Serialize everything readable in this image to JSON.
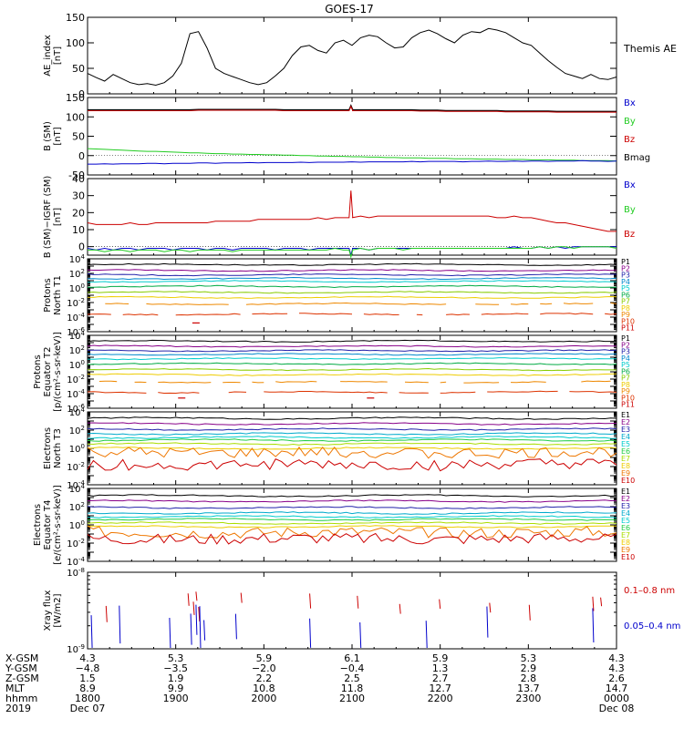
{
  "title": "GOES-17",
  "colors": {
    "axis": "#000000",
    "black": "#000000",
    "blue": "#0000cc",
    "green": "#22cc22",
    "red": "#cc0000"
  },
  "chart_data": [
    {
      "type": "line",
      "ylabel": [
        "AE_index",
        "[nT]"
      ],
      "ylim": [
        0,
        150
      ],
      "yticks": [
        "0",
        "50",
        "100",
        "150"
      ],
      "legend": [
        {
          "label": "Themis AE",
          "color": "#000000"
        }
      ],
      "series": [
        {
          "name": "Themis AE",
          "color": "#000000",
          "values": [
            40,
            32,
            25,
            38,
            30,
            22,
            18,
            20,
            17,
            22,
            35,
            60,
            118,
            122,
            90,
            50,
            40,
            34,
            28,
            22,
            18,
            22,
            35,
            50,
            75,
            92,
            95,
            85,
            80,
            100,
            105,
            95,
            110,
            115,
            112,
            100,
            90,
            92,
            110,
            120,
            125,
            118,
            108,
            100,
            115,
            122,
            120,
            128,
            125,
            120,
            110,
            100,
            95,
            80,
            65,
            52,
            40,
            35,
            30,
            38,
            30,
            28,
            33
          ]
        }
      ]
    },
    {
      "type": "line",
      "ylabel": [
        "B (SM)",
        "[nT]"
      ],
      "ylim": [
        -50,
        150
      ],
      "yticks": [
        "-50",
        "0",
        "50",
        "100",
        "150"
      ],
      "legend": [
        {
          "label": "Bx",
          "color": "#0000cc"
        },
        {
          "label": "By",
          "color": "#22cc22"
        },
        {
          "label": "Bz",
          "color": "#cc0000"
        },
        {
          "label": "Bmag",
          "color": "#000000"
        }
      ],
      "series": [
        {
          "name": "Bmag",
          "color": "#000000",
          "values": [
            118,
            118,
            118,
            118,
            118,
            118,
            118,
            118,
            118,
            118,
            118,
            118,
            118,
            119,
            119,
            119,
            119,
            119,
            119,
            119,
            119,
            119,
            119,
            118,
            118,
            118,
            118,
            118,
            118,
            118,
            118,
            118,
            118,
            118,
            118,
            118,
            118,
            118,
            118,
            117,
            117,
            117,
            116,
            116,
            116,
            116,
            116,
            116,
            116,
            115,
            115,
            115,
            115,
            115,
            115,
            114,
            114,
            114,
            114,
            114,
            114,
            114,
            114
          ]
        },
        {
          "name": "Bz",
          "color": "#cc0000",
          "values": [
            116,
            116,
            116,
            116,
            116,
            116,
            116,
            116,
            116,
            116,
            116,
            116,
            116,
            117,
            117,
            117,
            117,
            117,
            117,
            117,
            117,
            117,
            117,
            116,
            116,
            116,
            116,
            116,
            116,
            116,
            116,
            116,
            116,
            116,
            116,
            116,
            116,
            116,
            116,
            115,
            115,
            115,
            114,
            114,
            114,
            114,
            114,
            114,
            114,
            113,
            113,
            113,
            113,
            113,
            113,
            112,
            112,
            112,
            112,
            112,
            112,
            112,
            112
          ]
        },
        {
          "name": "By",
          "color": "#22cc22",
          "values": [
            18,
            17,
            16,
            15,
            14,
            13,
            12,
            11,
            11,
            10,
            9,
            8,
            7,
            7,
            6,
            5,
            5,
            4,
            4,
            3,
            3,
            2,
            2,
            1,
            1,
            0,
            0,
            -1,
            -1,
            -2,
            -2,
            -3,
            -3,
            -4,
            -4,
            -5,
            -5,
            -6,
            -6,
            -6,
            -7,
            -7,
            -7,
            -8,
            -8,
            -8,
            -9,
            -9,
            -9,
            -10,
            -10,
            -10,
            -11,
            -11,
            -11,
            -12,
            -12,
            -12,
            -13,
            -13,
            -13,
            -13,
            -14
          ]
        },
        {
          "name": "Bx",
          "color": "#0000cc",
          "values": [
            -22,
            -22,
            -21,
            -22,
            -21,
            -21,
            -21,
            -20,
            -20,
            -21,
            -20,
            -20,
            -20,
            -19,
            -19,
            -20,
            -19,
            -19,
            -19,
            -18,
            -19,
            -18,
            -18,
            -18,
            -18,
            -17,
            -18,
            -17,
            -17,
            -17,
            -17,
            -16,
            -17,
            -16,
            -16,
            -16,
            -16,
            -16,
            -15,
            -16,
            -15,
            -15,
            -15,
            -15,
            -16,
            -15,
            -15,
            -14,
            -15,
            -15,
            -14,
            -15,
            -14,
            -14,
            -15,
            -14,
            -14,
            -14,
            -13,
            -14,
            -14,
            -15,
            -14
          ]
        }
      ]
    },
    {
      "type": "line",
      "ylabel": [
        "B (SM)−IGRF (SM)",
        "[nT]"
      ],
      "ylim": [
        -5,
        40
      ],
      "yticks": [
        "0",
        "10",
        "20",
        "30",
        "40"
      ],
      "legend": [
        {
          "label": "Bx",
          "color": "#0000cc"
        },
        {
          "label": "By",
          "color": "#22cc22"
        },
        {
          "label": "Bz",
          "color": "#cc0000"
        }
      ],
      "series": [
        {
          "name": "Bz",
          "color": "#cc0000",
          "values": [
            14,
            13,
            13,
            13,
            13,
            14,
            13,
            13,
            14,
            14,
            14,
            14,
            14,
            14,
            14,
            15,
            15,
            15,
            15,
            15,
            16,
            16,
            16,
            16,
            16,
            16,
            16,
            17,
            16,
            17,
            17,
            17,
            18,
            17,
            18,
            18,
            18,
            18,
            18,
            18,
            18,
            18,
            18,
            18,
            18,
            18,
            18,
            18,
            17,
            17,
            18,
            17,
            17,
            16,
            15,
            14,
            14,
            13,
            12,
            11,
            10,
            9,
            9
          ]
        },
        {
          "name": "Bx",
          "color": "#0000cc",
          "values": [
            -1,
            -2,
            -1,
            -2,
            -1,
            -1,
            -2,
            -1,
            -1,
            -1,
            -2,
            -1,
            -1,
            -1,
            -2,
            -1,
            -1,
            -2,
            -1,
            -1,
            -1,
            -1,
            -2,
            -1,
            -1,
            -1,
            -2,
            -1,
            -1,
            -1,
            -1,
            -1,
            -1,
            -2,
            -1,
            -1,
            -1,
            -1,
            -1,
            -1,
            -1,
            -1,
            -1,
            -1,
            -1,
            -1,
            -1,
            -1,
            -1,
            -1,
            0,
            -1,
            -1,
            0,
            -1,
            0,
            -1,
            0,
            0,
            0,
            0,
            0,
            0
          ]
        },
        {
          "name": "By",
          "color": "#22cc22",
          "values": [
            -2,
            -2,
            -3,
            -2,
            -2,
            -3,
            -2,
            -2,
            -2,
            -3,
            -2,
            -2,
            -3,
            -2,
            -2,
            -2,
            -2,
            -3,
            -2,
            -2,
            -2,
            -2,
            -2,
            -2,
            -2,
            -2,
            -2,
            -2,
            -2,
            -1,
            -2,
            -2,
            -1,
            -2,
            -1,
            -1,
            -1,
            -2,
            -1,
            -1,
            -1,
            -1,
            -1,
            -1,
            -1,
            -1,
            -1,
            -1,
            -1,
            -1,
            -1,
            -1,
            -1,
            0,
            -1,
            0,
            0,
            -1,
            0,
            0,
            0,
            0,
            -1
          ]
        }
      ],
      "spikes": [
        {
          "x": 0.498,
          "values": {
            "Bz": 33,
            "Bx": -5,
            "By": -6
          }
        }
      ]
    },
    {
      "type": "line",
      "yscale": "log",
      "ylabel": [
        "Protons",
        "North T1"
      ],
      "ylim_exp": [
        -6,
        4
      ],
      "yticks": [
        "10^4",
        "10^2",
        "10^0",
        "10^-2",
        "10^-4",
        "10^-6"
      ],
      "legend": [
        {
          "label": "P1",
          "color": "#000000"
        },
        {
          "label": "P2",
          "color": "#880088"
        },
        {
          "label": "P3",
          "color": "#2222aa"
        },
        {
          "label": "P4",
          "color": "#0088cc"
        },
        {
          "label": "P5",
          "color": "#00cccc"
        },
        {
          "label": "P6",
          "color": "#00aa44"
        },
        {
          "label": "P7",
          "color": "#88cc00"
        },
        {
          "label": "P8",
          "color": "#eecc00"
        },
        {
          "label": "P9",
          "color": "#ee8800"
        },
        {
          "label": "P10",
          "color": "#dd3300"
        },
        {
          "label": "P11",
          "color": "#cc0000"
        }
      ],
      "levels_exp": [
        3.2,
        2.4,
        1.8,
        1.3,
        0.9,
        0.2,
        -0.6,
        -1.3,
        -2.2,
        -3.6,
        null
      ],
      "dropouts": [
        {
          "series": "P11",
          "x": 0.205,
          "exp": -4.8
        }
      ]
    },
    {
      "type": "line",
      "yscale": "log",
      "ylabel": [
        "Protons",
        "Equator T2",
        "[p/(cm²-s-sr-keV)]"
      ],
      "ylim_exp": [
        -6,
        4
      ],
      "yticks": [
        "10^4",
        "10^2",
        "10^0",
        "10^-2",
        "10^-4",
        "10^-6"
      ],
      "legend": [
        {
          "label": "P1",
          "color": "#000000"
        },
        {
          "label": "P2",
          "color": "#880088"
        },
        {
          "label": "P3",
          "color": "#2222aa"
        },
        {
          "label": "P4",
          "color": "#0088cc"
        },
        {
          "label": "P5",
          "color": "#00cccc"
        },
        {
          "label": "P6",
          "color": "#00aa44"
        },
        {
          "label": "P7",
          "color": "#88cc00"
        },
        {
          "label": "P8",
          "color": "#eecc00"
        },
        {
          "label": "P9",
          "color": "#ee8800"
        },
        {
          "label": "P10",
          "color": "#dd3300"
        },
        {
          "label": "P11",
          "color": "#cc0000"
        }
      ],
      "levels_exp": [
        3.2,
        2.5,
        1.9,
        1.4,
        0.8,
        0.1,
        -0.7,
        -1.4,
        -2.4,
        -3.8,
        null
      ],
      "dropouts": [
        {
          "series": "P11",
          "x": 0.178,
          "exp": -4.6
        },
        {
          "series": "P11",
          "x": 0.535,
          "exp": -4.6
        }
      ]
    },
    {
      "type": "line",
      "yscale": "log",
      "ylabel": [
        "Electrons",
        "North T3"
      ],
      "ylim_exp": [
        -4,
        4
      ],
      "yticks": [
        "10^4",
        "10^2",
        "10^0",
        "10^-2",
        "10^-4"
      ],
      "legend": [
        {
          "label": "E1",
          "color": "#000000"
        },
        {
          "label": "E2",
          "color": "#880088"
        },
        {
          "label": "E3",
          "color": "#2222aa"
        },
        {
          "label": "E4",
          "color": "#00aacc"
        },
        {
          "label": "E5",
          "color": "#00cccc"
        },
        {
          "label": "E6",
          "color": "#22cc44"
        },
        {
          "label": "E7",
          "color": "#aadd00"
        },
        {
          "label": "E8",
          "color": "#eecc00"
        },
        {
          "label": "E9",
          "color": "#ee7700"
        },
        {
          "label": "E10",
          "color": "#cc0000"
        }
      ],
      "levels_exp": [
        3.3,
        2.7,
        2.1,
        1.6,
        1.2,
        0.9,
        0.5,
        0.0,
        -0.5,
        -1.8
      ]
    },
    {
      "type": "line",
      "yscale": "log",
      "ylabel": [
        "Electrons",
        "Equator T4",
        "[e/(cm²-s-sr-keV)]"
      ],
      "ylim_exp": [
        -4,
        4
      ],
      "yticks": [
        "10^4",
        "10^2",
        "10^0",
        "10^-2",
        "10^-4"
      ],
      "legend": [
        {
          "label": "E1",
          "color": "#000000"
        },
        {
          "label": "E2",
          "color": "#880088"
        },
        {
          "label": "E3",
          "color": "#2222aa"
        },
        {
          "label": "E4",
          "color": "#00aacc"
        },
        {
          "label": "E5",
          "color": "#00cccc"
        },
        {
          "label": "E6",
          "color": "#22cc44"
        },
        {
          "label": "E7",
          "color": "#aadd00"
        },
        {
          "label": "E8",
          "color": "#eecc00"
        },
        {
          "label": "E9",
          "color": "#ee7700"
        },
        {
          "label": "E10",
          "color": "#cc0000"
        }
      ],
      "levels_exp": [
        3.2,
        2.6,
        1.9,
        1.3,
        0.9,
        0.6,
        0.2,
        -0.2,
        -0.8,
        -1.5
      ]
    },
    {
      "type": "line",
      "yscale": "log",
      "ylabel": [
        "Xray flux",
        "[W/m2]"
      ],
      "ylim_exp": [
        -9,
        -8
      ],
      "yticks": [
        "10^-8",
        "10^-9"
      ],
      "legend": [
        {
          "label": "0.1–0.8 nm",
          "color": "#cc0000"
        },
        {
          "label": "0.05–0.4 nm",
          "color": "#0000cc"
        }
      ]
    }
  ],
  "axis": {
    "row_labels": [
      "X-GSM",
      "Y-GSM",
      "Z-GSM",
      "MLT",
      "hhmm",
      "2019"
    ],
    "columns": [
      {
        "values": [
          "4.3",
          "−4.8",
          "1.5",
          "8.9",
          "1800",
          "Dec 07"
        ]
      },
      {
        "values": [
          "5.3",
          "−3.5",
          "1.9",
          "9.9",
          "1900",
          ""
        ]
      },
      {
        "values": [
          "5.9",
          "−2.0",
          "2.2",
          "10.8",
          "2000",
          ""
        ]
      },
      {
        "values": [
          "6.1",
          "−0.4",
          "2.5",
          "11.8",
          "2100",
          ""
        ]
      },
      {
        "values": [
          "5.9",
          "1.3",
          "2.7",
          "12.7",
          "2200",
          ""
        ]
      },
      {
        "values": [
          "5.3",
          "2.9",
          "2.8",
          "13.7",
          "2300",
          ""
        ]
      },
      {
        "values": [
          "4.3",
          "4.3",
          "2.6",
          "14.7",
          "0000",
          "Dec 08"
        ]
      }
    ]
  }
}
